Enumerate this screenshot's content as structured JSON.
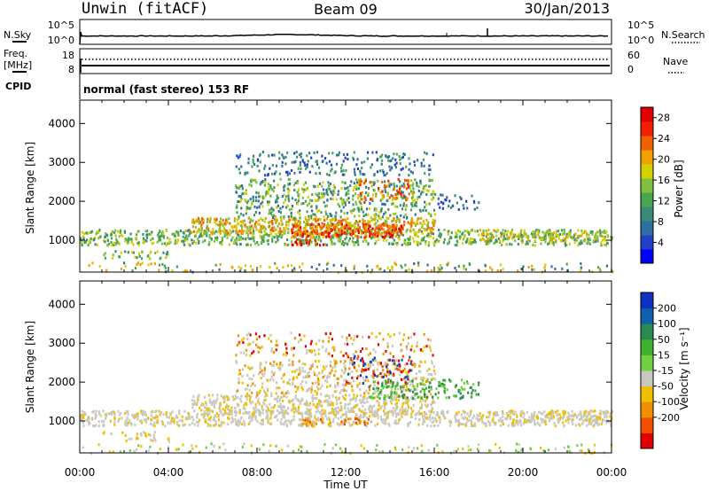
{
  "header": {
    "site": "Unwin (fitACF)",
    "beam": "Beam 09",
    "date": "30/Jan/2013"
  },
  "mode_text": "normal (fast stereo) 153 RF",
  "colors": {
    "power": [
      "#0000ff",
      "#2040c8",
      "#2f6fa0",
      "#3a8a78",
      "#49a550",
      "#80c040",
      "#d4d000",
      "#f0a000",
      "#f06000",
      "#f02000",
      "#e00000"
    ],
    "velocity": [
      "#1030c0",
      "#1060b0",
      "#2a8a50",
      "#40b030",
      "#70d040",
      "#c8c8c0",
      "#f0c000",
      "#f09000",
      "#f05000",
      "#e00000"
    ]
  },
  "chart_data": [
    {
      "type": "line",
      "name": "noise",
      "left_label": "N.Sky",
      "right_label": "N.Search",
      "left_ticks": [
        "10^5",
        "10^0"
      ],
      "right_ticks": [
        "10^5",
        "10^0"
      ]
    },
    {
      "type": "line",
      "name": "frequency",
      "left_label_top": "Freq.",
      "left_label_bottom": "[MHz]",
      "right_label": "Nave",
      "left_ticks": [
        "18",
        "8"
      ],
      "right_ticks": [
        "60",
        "0"
      ],
      "cpid_label": "CPID"
    },
    {
      "type": "heatmap",
      "name": "power",
      "ylabel": "Slant Range [km]",
      "yticks": [
        1000,
        2000,
        3000,
        4000
      ],
      "ylim": [
        180,
        4600
      ],
      "xlim": [
        0,
        24
      ],
      "colorbar_label": "Power [dB]",
      "colorbar_ticks": [
        4,
        8,
        12,
        16,
        20,
        24,
        28
      ]
    },
    {
      "type": "heatmap",
      "name": "velocity",
      "ylabel": "Slant Range [km]",
      "yticks": [
        1000,
        2000,
        3000,
        4000
      ],
      "ylim": [
        180,
        4600
      ],
      "xlim": [
        0,
        24
      ],
      "colorbar_label": "Velocity [m s⁻¹]",
      "colorbar_ticks": [
        200,
        100,
        50,
        15,
        -15,
        -50,
        -100,
        -200
      ]
    }
  ],
  "xaxis": {
    "xlabel": "Time UT",
    "ticklabels": [
      "00:00",
      "04:00",
      "08:00",
      "12:00",
      "16:00",
      "20:00",
      "00:00"
    ]
  }
}
